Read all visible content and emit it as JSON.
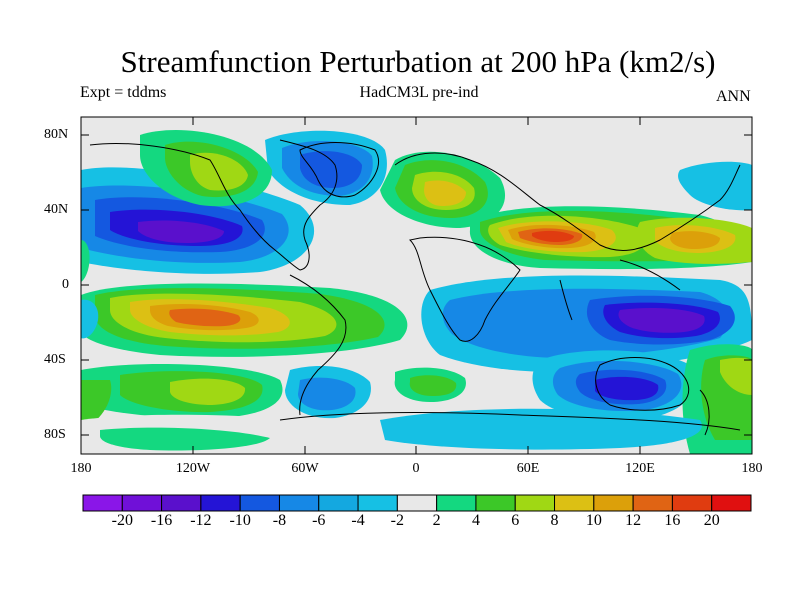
{
  "title": "Streamfunction Perturbation at 200 hPa (km2/s)",
  "left_subtitle": "Expt = tddms",
  "center_subtitle": "HadCM3L pre-ind",
  "right_subtitle": "ANN",
  "lat_labels": [
    "80N",
    "40N",
    "0",
    "40S",
    "80S"
  ],
  "lon_labels": [
    "180",
    "120W",
    "60W",
    "0",
    "60E",
    "120E",
    "180"
  ],
  "colorbar": {
    "labels": [
      "-20",
      "-16",
      "-12",
      "-10",
      "-8",
      "-6",
      "-4",
      "-2",
      "2",
      "4",
      "6",
      "8",
      "10",
      "12",
      "16",
      "20"
    ],
    "colors": [
      "#8a16e8",
      "#7010d8",
      "#5a10cc",
      "#2414d6",
      "#1458e0",
      "#1688e6",
      "#14a8e0",
      "#16c0e4",
      "#e8e8e8",
      "#14d880",
      "#3cc828",
      "#a0d814",
      "#dcc014",
      "#dca00a",
      "#e06414",
      "#e03c10",
      "#e01010"
    ]
  },
  "background_color": "#e8e8e8"
}
